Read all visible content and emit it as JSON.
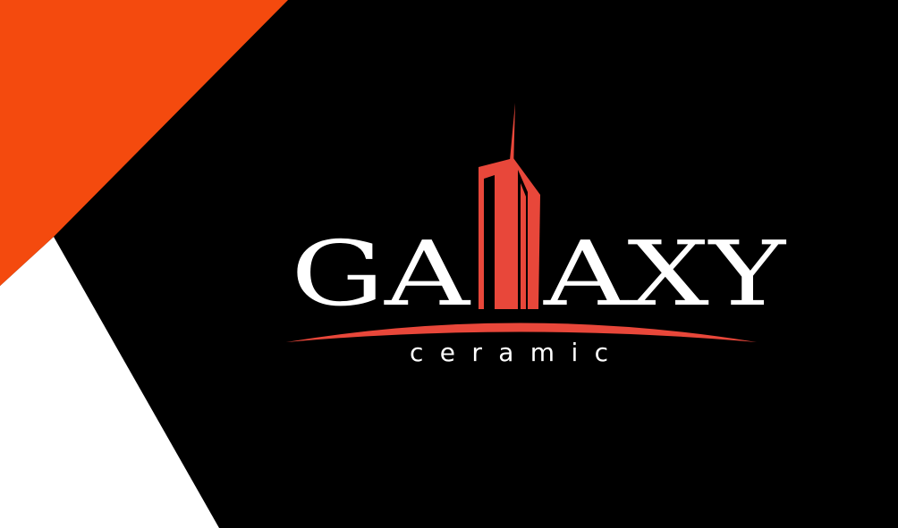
{
  "brand": {
    "word_left": "GA",
    "word_right": "AXY",
    "tagline": "ceramic"
  },
  "colors": {
    "background": "#000000",
    "accent": "#F44A0E",
    "logo_red": "#E8473A",
    "white": "#FFFFFF"
  }
}
